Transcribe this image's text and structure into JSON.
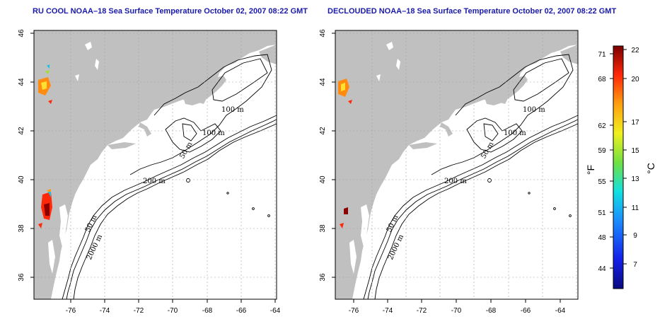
{
  "titles": {
    "left": "RU COOL NOAA–18 Sea Surface Temperature October 02, 2007 08:22 GMT",
    "right": "DECLOUDED NOAA–18 Sea Surface Temperature October 02, 2007 08:22 GMT"
  },
  "map": {
    "lon_ticks": [
      "-76",
      "-74",
      "-72",
      "-70",
      "-68",
      "-66",
      "-64"
    ],
    "lat_ticks": [
      "46",
      "44",
      "42",
      "40",
      "38",
      "36"
    ],
    "contour_labels": {
      "depth_100_north": "100 m",
      "depth_100_mid": "100 m",
      "depth_50_mid": "50 m",
      "depth_200": "200 m",
      "depth_50_south": "50 m",
      "depth_2000": "2000 m"
    },
    "colors": {
      "land": "#c0c0c0",
      "ocean": "#ffffff",
      "contour": "#000000",
      "grid": "#a0a0a0"
    }
  },
  "colorbar": {
    "fahrenheit_ticks": [
      "71",
      "68",
      "62",
      "59",
      "55",
      "51",
      "48",
      "44"
    ],
    "celsius_ticks": [
      "22",
      "20",
      "17",
      "15",
      "13",
      "11",
      "9",
      "7"
    ],
    "fahrenheit_unit": "°F",
    "celsius_unit": "°C",
    "range_celsius": [
      5,
      22.5
    ]
  }
}
